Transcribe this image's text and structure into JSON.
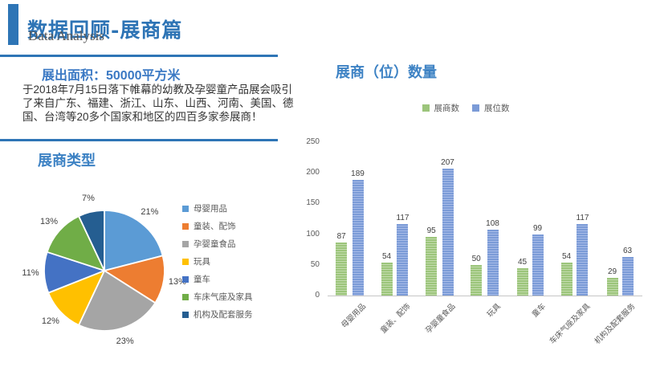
{
  "slide": {
    "title": "数据回顾-展商篇",
    "subtitle": "Data Analysis"
  },
  "left": {
    "area_heading": "展出面积：50000平方米",
    "paragraph": "于2018年7月15日落下帷幕的幼教及孕婴童产品展会吸引了来自广东、福建、浙江、山东、山西、河南、美国、德国、台湾等20多个国家和地区的四百多家参展商！"
  },
  "colors": {
    "accent_blue": "#2E75B6",
    "heading_blue": "#3D82C4",
    "subtitle_gray": "#595959",
    "axis_gray": "#C6C6C6"
  },
  "chart_data": [
    {
      "type": "pie",
      "title": "展商类型",
      "labels": [
        "母婴用品",
        "童装、配饰",
        "孕婴童食品",
        "玩具",
        "童车",
        "车床气座及家具",
        "机构及配套服务"
      ],
      "values": [
        21,
        13,
        23,
        12,
        11,
        13,
        7
      ],
      "unit": "%",
      "colors": [
        "#5B9BD5",
        "#ED7D31",
        "#A5A5A5",
        "#FFC000",
        "#4472C4",
        "#70AD47",
        "#255E91"
      ],
      "legend_position": "right",
      "start_angle_deg": 0,
      "direction": "clockwise"
    },
    {
      "type": "bar",
      "title": "展商（位）数量",
      "categories": [
        "母婴用品",
        "童装、配饰",
        "孕婴童食品",
        "玩具",
        "童车",
        "车床气座及家具",
        "机构及配套服务"
      ],
      "series": [
        {
          "name": "展商数",
          "values": [
            87,
            54,
            95,
            50,
            45,
            54,
            29
          ],
          "fill": "#9CC57B",
          "stripe": "#C3DCAE"
        },
        {
          "name": "展位数",
          "values": [
            189,
            117,
            207,
            108,
            99,
            117,
            63
          ],
          "fill": "#7B9BD7",
          "stripe": "#A8BCE8"
        }
      ],
      "ylim": [
        0,
        250
      ],
      "yticks": [
        0,
        50,
        100,
        150,
        200,
        250
      ],
      "legend_position": "top",
      "grid": false,
      "value_labels": true
    }
  ]
}
